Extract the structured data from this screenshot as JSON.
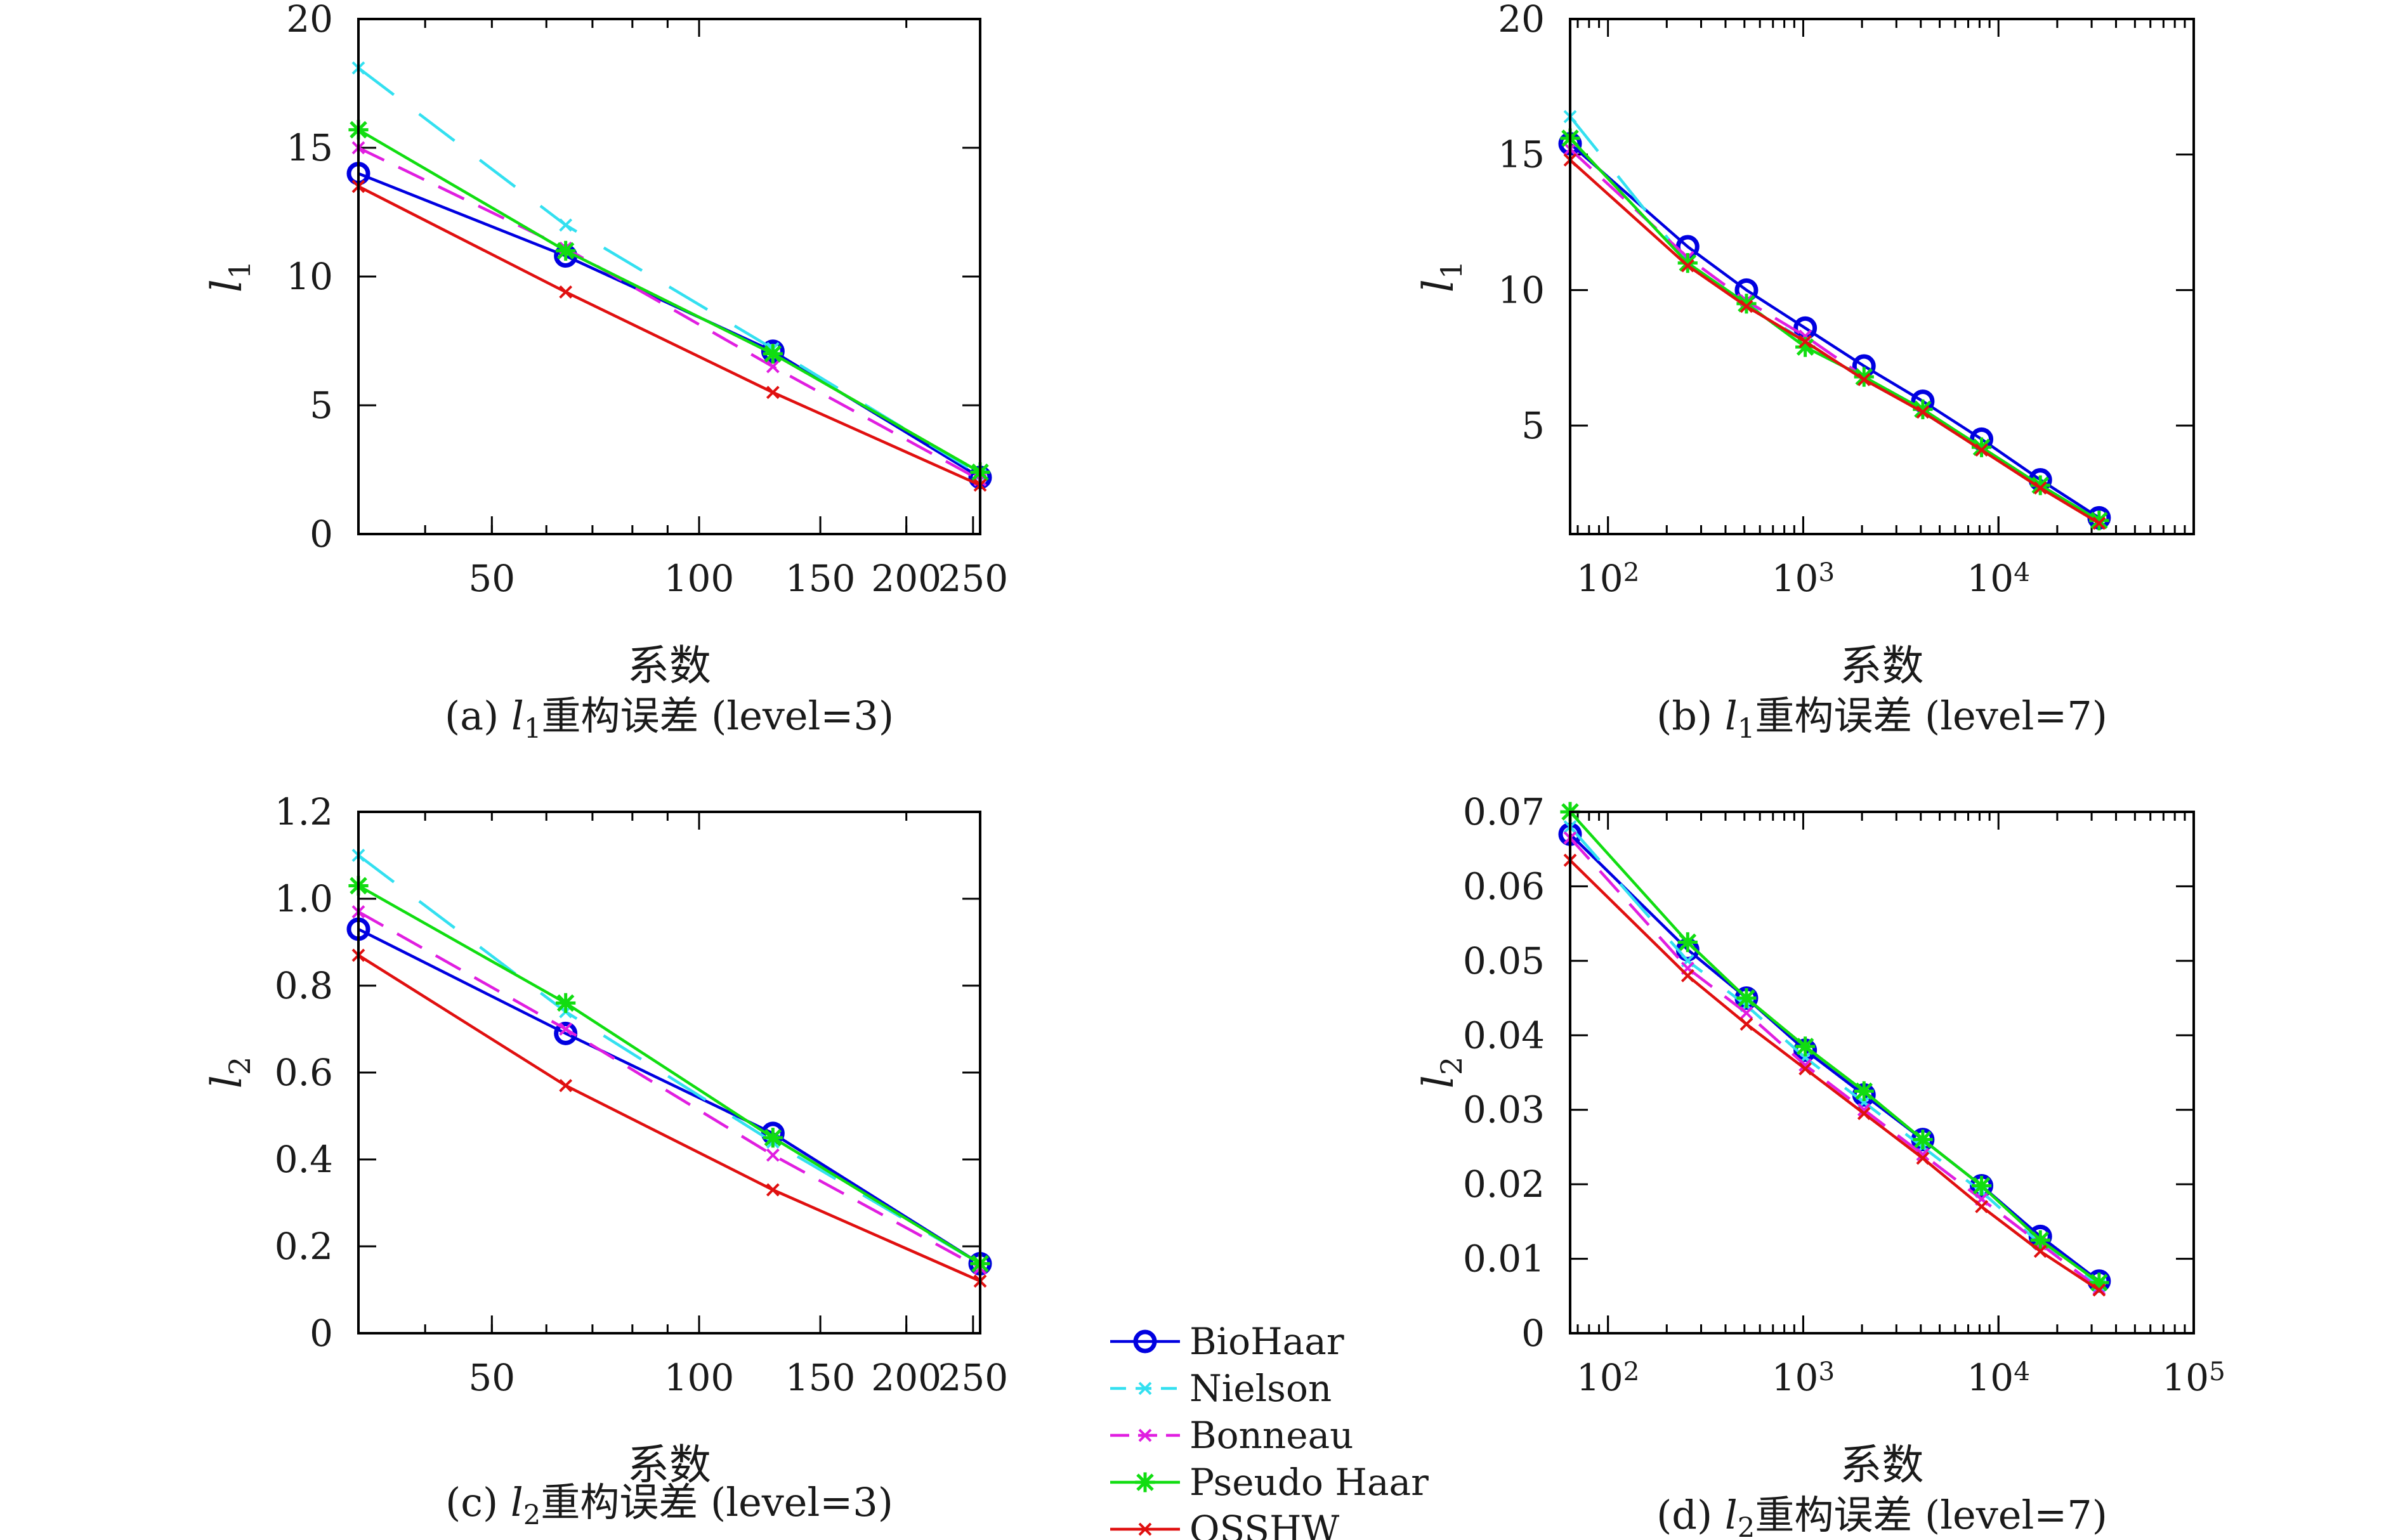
{
  "series_styles": {
    "BioHaar": {
      "color": "#0000e0",
      "dash": "none",
      "marker": "circle"
    },
    "Nielson": {
      "color": "#33e0f0",
      "dash": "70,50",
      "marker": "x"
    },
    "Bonneau": {
      "color": "#e01ee0",
      "dash": "45,25",
      "marker": "x"
    },
    "Pseudo Haar": {
      "color": "#11dd11",
      "dash": "none",
      "marker": "star"
    },
    "OSSHW": {
      "color": "#e01010",
      "dash": "none",
      "marker": "x"
    }
  },
  "legend": [
    "BioHaar",
    "Nielson",
    "Bonneau",
    "Pseudo Haar",
    "OSSHW"
  ],
  "chart_data": [
    {
      "id": "a",
      "type": "line",
      "caption": "(a) l1重构误差 (level=3)",
      "xlabel": "系数",
      "ylabel": "l1",
      "xscale": "log",
      "xlim": [
        32,
        256
      ],
      "ylim": [
        0,
        20
      ],
      "xticks": [
        {
          "v": 50,
          "label": "50"
        },
        {
          "v": 100,
          "label": "100"
        },
        {
          "v": 150,
          "label": "150"
        },
        {
          "v": 200,
          "label": "200"
        },
        {
          "v": 250,
          "label": "250"
        }
      ],
      "yticks": [
        {
          "v": 0,
          "label": "0"
        },
        {
          "v": 5,
          "label": "5"
        },
        {
          "v": 10,
          "label": "10"
        },
        {
          "v": 15,
          "label": "15"
        },
        {
          "v": 20,
          "label": "20"
        }
      ],
      "grid": false,
      "series": [
        {
          "name": "BioHaar",
          "x": [
            32,
            64,
            128,
            256
          ],
          "y": [
            14.0,
            10.8,
            7.1,
            2.2
          ]
        },
        {
          "name": "Nielson",
          "x": [
            32,
            64,
            128,
            256
          ],
          "y": [
            18.1,
            12.0,
            7.2,
            2.3
          ]
        },
        {
          "name": "Bonneau",
          "x": [
            32,
            64,
            128,
            256
          ],
          "y": [
            15.0,
            11.1,
            6.5,
            2.1
          ]
        },
        {
          "name": "Pseudo Haar",
          "x": [
            32,
            64,
            128,
            256
          ],
          "y": [
            15.7,
            11.0,
            7.0,
            2.4
          ]
        },
        {
          "name": "OSSHW",
          "x": [
            32,
            64,
            128,
            256
          ],
          "y": [
            13.5,
            9.4,
            5.5,
            1.9
          ]
        }
      ]
    },
    {
      "id": "b",
      "type": "line",
      "caption": "(b) l1重构误差 (level=7)",
      "xlabel": "系数",
      "ylabel": "l1",
      "xscale": "log",
      "xlim": [
        64,
        100000
      ],
      "ylim": [
        1,
        20
      ],
      "xticks": [
        {
          "v": 100,
          "label": "10^2"
        },
        {
          "v": 1000,
          "label": "10^3"
        },
        {
          "v": 10000,
          "label": "10^4"
        }
      ],
      "yticks": [
        {
          "v": 5,
          "label": "5"
        },
        {
          "v": 10,
          "label": "10"
        },
        {
          "v": 15,
          "label": "15"
        },
        {
          "v": 20,
          "label": "20"
        }
      ],
      "grid": false,
      "series": [
        {
          "name": "BioHaar",
          "x": [
            64,
            256,
            512,
            1024,
            2048,
            4096,
            8192,
            16384,
            32768
          ],
          "y": [
            15.4,
            11.6,
            10.0,
            8.6,
            7.2,
            5.9,
            4.5,
            3.0,
            1.6
          ]
        },
        {
          "name": "Nielson",
          "x": [
            64,
            256,
            512,
            1024,
            2048,
            4096,
            8192,
            16384,
            32768
          ],
          "y": [
            16.4,
            11.0,
            9.5,
            8.1,
            6.7,
            5.5,
            4.1,
            2.8,
            1.5
          ]
        },
        {
          "name": "Bonneau",
          "x": [
            64,
            256,
            512,
            1024,
            2048,
            4096,
            8192,
            16384,
            32768
          ],
          "y": [
            15.2,
            11.2,
            9.6,
            8.3,
            6.8,
            5.6,
            4.2,
            2.8,
            1.5
          ]
        },
        {
          "name": "Pseudo Haar",
          "x": [
            64,
            256,
            512,
            1024,
            2048,
            4096,
            8192,
            16384,
            32768
          ],
          "y": [
            15.6,
            11.0,
            9.5,
            7.9,
            6.8,
            5.6,
            4.2,
            2.8,
            1.5
          ]
        },
        {
          "name": "OSSHW",
          "x": [
            64,
            256,
            512,
            1024,
            2048,
            4096,
            8192,
            16384,
            32768
          ],
          "y": [
            14.8,
            10.9,
            9.4,
            8.1,
            6.7,
            5.5,
            4.1,
            2.7,
            1.4
          ]
        }
      ]
    },
    {
      "id": "c",
      "type": "line",
      "caption": "(c) l2重构误差 (level=3)",
      "xlabel": "系数",
      "ylabel": "l2",
      "xscale": "log",
      "xlim": [
        32,
        256
      ],
      "ylim": [
        0,
        1.2
      ],
      "xticks": [
        {
          "v": 50,
          "label": "50"
        },
        {
          "v": 100,
          "label": "100"
        },
        {
          "v": 150,
          "label": "150"
        },
        {
          "v": 200,
          "label": "200"
        },
        {
          "v": 250,
          "label": "250"
        }
      ],
      "yticks": [
        {
          "v": 0,
          "label": "0"
        },
        {
          "v": 0.2,
          "label": "0.2"
        },
        {
          "v": 0.4,
          "label": "0.4"
        },
        {
          "v": 0.6,
          "label": "0.6"
        },
        {
          "v": 0.8,
          "label": "0.8"
        },
        {
          "v": 1.0,
          "label": "1.0"
        },
        {
          "v": 1.2,
          "label": "1.2"
        }
      ],
      "grid": false,
      "series": [
        {
          "name": "BioHaar",
          "x": [
            32,
            64,
            128,
            256
          ],
          "y": [
            0.93,
            0.69,
            0.46,
            0.16
          ]
        },
        {
          "name": "Nielson",
          "x": [
            32,
            64,
            128,
            256
          ],
          "y": [
            1.1,
            0.74,
            0.44,
            0.16
          ]
        },
        {
          "name": "Bonneau",
          "x": [
            32,
            64,
            128,
            256
          ],
          "y": [
            0.97,
            0.7,
            0.41,
            0.15
          ]
        },
        {
          "name": "Pseudo Haar",
          "x": [
            32,
            64,
            128,
            256
          ],
          "y": [
            1.03,
            0.76,
            0.45,
            0.16
          ]
        },
        {
          "name": "OSSHW",
          "x": [
            32,
            64,
            128,
            256
          ],
          "y": [
            0.87,
            0.57,
            0.33,
            0.12
          ]
        }
      ]
    },
    {
      "id": "d",
      "type": "line",
      "caption": "(d) l2重构误差 (level=7)",
      "xlabel": "系数",
      "ylabel": "l2",
      "xscale": "log",
      "xlim": [
        64,
        100000
      ],
      "ylim": [
        0,
        0.07
      ],
      "xticks": [
        {
          "v": 100,
          "label": "10^2"
        },
        {
          "v": 1000,
          "label": "10^3"
        },
        {
          "v": 10000,
          "label": "10^4"
        },
        {
          "v": 100000,
          "label": "10^5"
        }
      ],
      "yticks": [
        {
          "v": 0,
          "label": "0"
        },
        {
          "v": 0.01,
          "label": "0.01"
        },
        {
          "v": 0.02,
          "label": "0.02"
        },
        {
          "v": 0.03,
          "label": "0.03"
        },
        {
          "v": 0.04,
          "label": "0.04"
        },
        {
          "v": 0.05,
          "label": "0.05"
        },
        {
          "v": 0.06,
          "label": "0.06"
        },
        {
          "v": 0.07,
          "label": "0.07"
        }
      ],
      "grid": false,
      "series": [
        {
          "name": "BioHaar",
          "x": [
            64,
            256,
            512,
            1024,
            2048,
            4096,
            8192,
            16384,
            32768
          ],
          "y": [
            0.067,
            0.0515,
            0.045,
            0.038,
            0.032,
            0.026,
            0.0198,
            0.013,
            0.007
          ]
        },
        {
          "name": "Nielson",
          "x": [
            64,
            256,
            512,
            1024,
            2048,
            4096,
            8192,
            16384,
            32768
          ],
          "y": [
            0.068,
            0.05,
            0.044,
            0.037,
            0.031,
            0.025,
            0.019,
            0.012,
            0.0065
          ]
        },
        {
          "name": "Bonneau",
          "x": [
            64,
            256,
            512,
            1024,
            2048,
            4096,
            8192,
            16384,
            32768
          ],
          "y": [
            0.0665,
            0.049,
            0.043,
            0.036,
            0.03,
            0.024,
            0.018,
            0.012,
            0.006
          ]
        },
        {
          "name": "Pseudo Haar",
          "x": [
            64,
            256,
            512,
            1024,
            2048,
            4096,
            8192,
            16384,
            32768
          ],
          "y": [
            0.07,
            0.0525,
            0.045,
            0.0385,
            0.0325,
            0.026,
            0.0198,
            0.0125,
            0.0068
          ]
        },
        {
          "name": "OSSHW",
          "x": [
            64,
            256,
            512,
            1024,
            2048,
            4096,
            8192,
            16384,
            32768
          ],
          "y": [
            0.0635,
            0.048,
            0.0415,
            0.0355,
            0.0295,
            0.0235,
            0.017,
            0.011,
            0.0058
          ]
        }
      ]
    }
  ]
}
